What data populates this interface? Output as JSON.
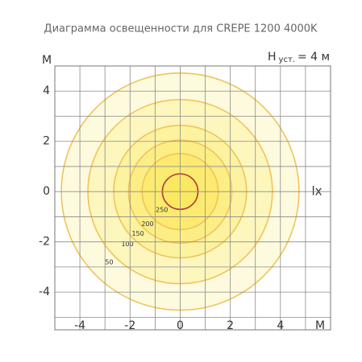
{
  "chart_data": {
    "type": "isolux",
    "title": "Диаграмма освещенности для  CREPE 1200 4000K",
    "x_label": "M",
    "y_label": "M",
    "unit_label": "lx",
    "height_label": {
      "symbol": "H",
      "subscript": "уст.",
      "rest": "= 4 м"
    },
    "xlim": [
      -5,
      6
    ],
    "ylim": [
      -5.5,
      5
    ],
    "xticks": [
      -4,
      -2,
      0,
      2,
      4
    ],
    "yticks": [
      -4,
      -2,
      0,
      2,
      4
    ],
    "xgrid": [
      -4,
      -3,
      -2,
      -1,
      0,
      1,
      2,
      3,
      4,
      5
    ],
    "ygrid": [
      -5,
      -4,
      -3,
      -2,
      -1,
      0,
      1,
      2,
      3,
      4
    ],
    "grid": true,
    "levels": [
      null,
      50,
      100,
      150,
      200,
      250
    ],
    "radii": [
      4.74,
      3.68,
      2.65,
      2.06,
      1.52,
      0.71
    ],
    "color": "#f0c45a",
    "inner_color": "#b03a3a"
  }
}
